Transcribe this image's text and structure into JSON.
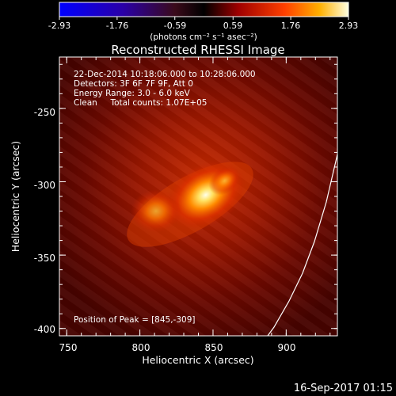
{
  "colorbar": {
    "tick_labels": [
      "-2.93",
      "-1.76",
      "-0.59",
      "0.59",
      "1.76",
      "2.93"
    ],
    "unit_label": "(photons cm⁻² s⁻¹ asec⁻²)",
    "min": -2.93,
    "max": 2.93
  },
  "title": "Reconstructed RHESSI Image",
  "info_lines": [
    "22-Dec-2014 10:18:06.000 to 10:28:06.000",
    "Detectors: 3F 6F 7F 9F, Att 0",
    "Energy Range: 3.0 - 6.0 keV",
    "Clean     Total counts: 1.07E+05"
  ],
  "peak_label": "Position of Peak = [845,-309]",
  "x_axis": {
    "label": "Heliocentric X (arcsec)",
    "ticks": [
      "750",
      "800",
      "850",
      "900"
    ],
    "range": [
      745,
      935
    ]
  },
  "y_axis": {
    "label": "Heliocentric Y (arcsec)",
    "ticks": [
      "-250",
      "-300",
      "-350",
      "-400"
    ],
    "range": [
      -405,
      -215
    ]
  },
  "footer_date": "16-Sep-2017 01:15",
  "sources": [
    {
      "x": 845,
      "y": -309,
      "intensity": 1.0
    },
    {
      "x": 811,
      "y": -320,
      "intensity": 0.72
    }
  ],
  "colors": {
    "limb": "#ffffff",
    "background": "#000000"
  }
}
